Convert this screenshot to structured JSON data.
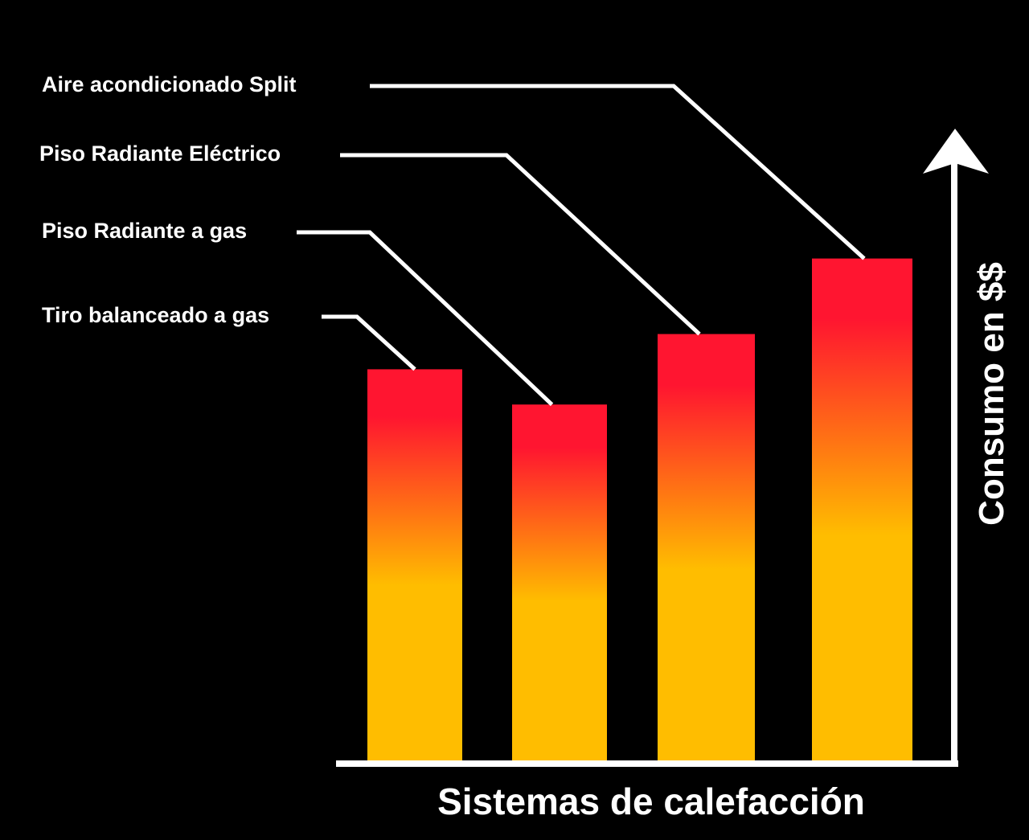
{
  "chart_data": {
    "type": "bar",
    "title": "",
    "xlabel": "Sistemas de calefacción",
    "ylabel": "Consumo en $$",
    "categories": [
      "Tiro balanceado a gas",
      "Piso Radiante a gas",
      "Piso Radiante Eléctrico",
      "Aire acondicionado Split"
    ],
    "values": [
      0.78,
      0.71,
      0.85,
      1.0
    ],
    "ylim": [
      0,
      1.25
    ],
    "grid": false,
    "legend": "none",
    "axis_ticks": false,
    "colors": {
      "bar_top": "#ff1530",
      "bar_mid": "#ff7a12",
      "bar_bottom": "#ffbd00",
      "axis": "#ffffff",
      "background": "#000000",
      "text": "#ffffff"
    }
  }
}
